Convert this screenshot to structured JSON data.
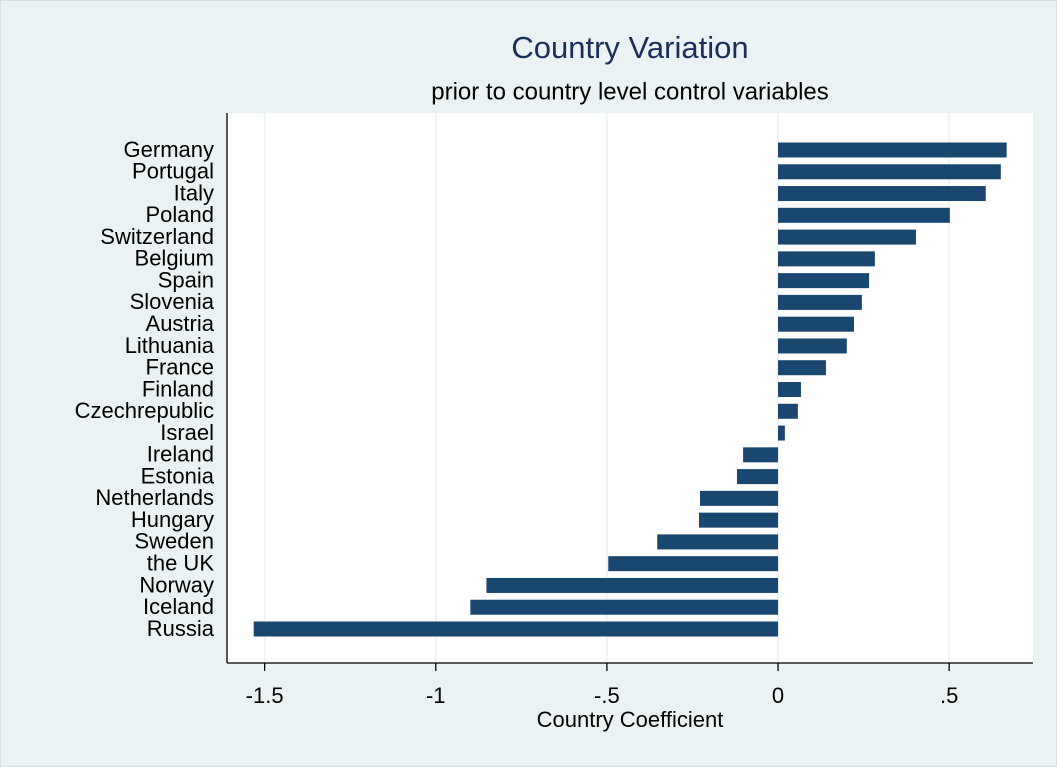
{
  "chart_data": {
    "type": "bar",
    "orientation": "horizontal",
    "title": "Country Variation",
    "subtitle": "prior to country level control variables",
    "x_label": "Country Coefficient",
    "categories": [
      "Germany",
      "Portugal",
      "Italy",
      "Poland",
      "Switzerland",
      "Belgium",
      "Spain",
      "Slovenia",
      "Austria",
      "Lithuania",
      "France",
      "Finland",
      "Czechrepublic",
      "Israel",
      "Ireland",
      "Estonia",
      "Netherlands",
      "Hungary",
      "Sweden",
      "the UK",
      "Norway",
      "Iceland",
      "Russia"
    ],
    "values": [
      0.668,
      0.651,
      0.607,
      0.502,
      0.403,
      0.283,
      0.266,
      0.245,
      0.222,
      0.201,
      0.14,
      0.067,
      0.058,
      0.02,
      -0.102,
      -0.12,
      -0.228,
      -0.231,
      -0.353,
      -0.496,
      -0.852,
      -0.899,
      -1.532
    ],
    "color": "#1a476f",
    "xlim": [
      -1.61,
      0.745
    ],
    "xticks": [
      -1.5,
      -1,
      {
        "value": -0.5,
        "label": "-.5"
      },
      0,
      {
        "value": 0.5,
        "label": ".5"
      }
    ],
    "grid": true
  }
}
